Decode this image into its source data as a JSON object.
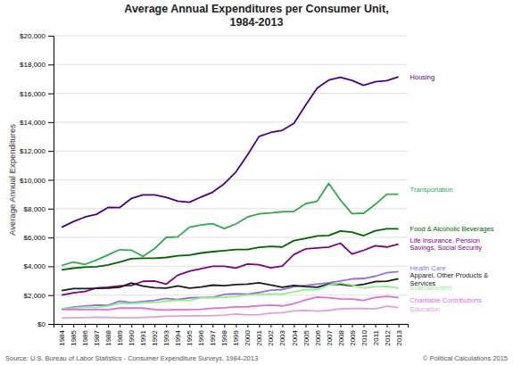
{
  "chart_data": {
    "type": "line",
    "title": "Average Annual Expenditures per Consumer Unit,\n1984-2013",
    "y_label": "Average Annual Expenditures",
    "notes": [
      "Source: U.S. Bureau of Labor Statistics - Consumer Expenditure Surveys, 1984-2013",
      "© Political Calculations 2015"
    ],
    "x": [
      1984,
      1985,
      1986,
      1987,
      1988,
      1989,
      1990,
      1991,
      1992,
      1993,
      1994,
      1995,
      1996,
      1997,
      1998,
      1999,
      2000,
      2001,
      2002,
      2003,
      2004,
      2005,
      2006,
      2007,
      2008,
      2009,
      2010,
      2011,
      2012,
      2013
    ],
    "xlim": [
      1983.3,
      2013.8
    ],
    "xticks": [
      1984,
      1985,
      1986,
      1987,
      1988,
      1989,
      1990,
      1991,
      1992,
      1993,
      1994,
      1995,
      1996,
      1997,
      1998,
      1999,
      2000,
      2001,
      2002,
      2003,
      2004,
      2005,
      2006,
      2007,
      2008,
      2009,
      2010,
      2011,
      2012,
      2013
    ],
    "ylim": [
      0,
      20000
    ],
    "yticks": [
      {
        "value": 0,
        "label": "$0"
      },
      {
        "value": 2000,
        "label": "$2,000"
      },
      {
        "value": 4000,
        "label": "$4,000"
      },
      {
        "value": 6000,
        "label": "$6,000"
      },
      {
        "value": 8000,
        "label": "$8,000"
      },
      {
        "value": 10000,
        "label": "$10,000"
      },
      {
        "value": 12000,
        "label": "$12,000"
      },
      {
        "value": 14000,
        "label": "$14,000"
      },
      {
        "value": 16000,
        "label": "$16,000"
      },
      {
        "value": 18000,
        "label": "$18,000"
      },
      {
        "value": 20000,
        "label": "$20,000"
      }
    ],
    "grid": "y",
    "series": [
      {
        "color": "#4b0082",
        "values": [
          6713,
          7101,
          7415,
          7609,
          8079,
          8078,
          8703,
          8961,
          8958,
          8781,
          8516,
          8440,
          8805,
          9145,
          9725,
          10535,
          11713,
          13011,
          13283,
          13432,
          13918,
          15167,
          16366,
          16920,
          17109,
          16895,
          16557,
          16803,
          16887,
          17148
        ]
      },
      {
        "color": "#32a852",
        "values": [
          4056,
          4291,
          4132,
          4437,
          4792,
          5152,
          5120,
          4691,
          5227,
          6005,
          6044,
          6714,
          6865,
          6958,
          6616,
          6937,
          7417,
          7633,
          7702,
          7787,
          7801,
          8344,
          8508,
          9753,
          8604,
          7658,
          7677,
          8293,
          8998,
          9004
        ]
      },
      {
        "color": "#006400",
        "values": [
          3750,
          3870,
          3943,
          3967,
          4095,
          4296,
          4527,
          4560,
          4555,
          4614,
          4726,
          4780,
          4922,
          5016,
          5087,
          5165,
          5158,
          5321,
          5375,
          5340,
          5781,
          5931,
          6111,
          6133,
          6443,
          6372,
          6129,
          6458,
          6599,
          6602
        ]
      },
      {
        "color": "#800080",
        "values": [
          2004,
          2162,
          2246,
          2493,
          2549,
          2636,
          2673,
          2956,
          2981,
          2760,
          3381,
          3663,
          3830,
          3997,
          4005,
          3877,
          4154,
          4109,
          3899,
          4019,
          4823,
          5204,
          5270,
          5336,
          5605,
          4849,
          5109,
          5424,
          5340,
          5528
        ]
      },
      {
        "color": "#9370DB",
        "values": [
          1049,
          1167,
          1241,
          1301,
          1298,
          1585,
          1480,
          1554,
          1634,
          1776,
          1701,
          1811,
          1831,
          1841,
          2047,
          2097,
          2066,
          2182,
          2350,
          2384,
          2574,
          2664,
          2766,
          2853,
          2976,
          3126,
          3157,
          3313,
          3556,
          3631
        ]
      },
      {
        "color": "#1a1a1a",
        "values": [
          2310,
          2450,
          2450,
          2474,
          2479,
          2541,
          2835,
          2620,
          2511,
          2487,
          2640,
          2490,
          2567,
          2693,
          2655,
          2727,
          2760,
          2850,
          2700,
          2550,
          2670,
          2594,
          2541,
          2764,
          2754,
          2635,
          2747,
          2941,
          2960,
          3137
        ]
      },
      {
        "color": "#90EE90",
        "values": [
          1060,
          1104,
          1167,
          1142,
          1250,
          1424,
          1422,
          1472,
          1492,
          1579,
          1651,
          1612,
          1813,
          1813,
          1853,
          1891,
          2020,
          2034,
          2079,
          2060,
          2218,
          2388,
          2376,
          2698,
          2835,
          2693,
          2504,
          2572,
          2605,
          2482
        ]
      },
      {
        "color": "#DA70D6",
        "values": [
          1000,
          1020,
          1000,
          1000,
          1000,
          1100,
          1100,
          1100,
          1000,
          970,
          1000,
          1000,
          1017,
          1097,
          1124,
          1190,
          1192,
          1263,
          1303,
          1253,
          1408,
          1663,
          1869,
          1821,
          1737,
          1723,
          1633,
          1834,
          1913,
          1834
        ]
      },
      {
        "color": "#DDA0DD",
        "values": [
          408,
          430,
          446,
          471,
          459,
          431,
          430,
          457,
          480,
          530,
          546,
          571,
          571,
          580,
          614,
          691,
          632,
          648,
          752,
          783,
          905,
          940,
          888,
          945,
          1046,
          1068,
          1074,
          1051,
          1238,
          1138
        ]
      }
    ],
    "annotations": [
      {
        "text": "Housing",
        "x": 2014.0,
        "y": 17148,
        "color": "#4b0082"
      },
      {
        "text": "Transportation",
        "x": 2014.0,
        "y": 9300,
        "color": "#32a852"
      },
      {
        "text": "Food & Alcoholic Beverages",
        "x": 2014.0,
        "y": 6602,
        "color": "#006400"
      },
      {
        "text": "Life Insurance, Pension\nSavings, Social Security",
        "x": 2014.0,
        "y": 5528,
        "color": "#800080"
      },
      {
        "text": "Health Care",
        "x": 2014.0,
        "y": 3900,
        "color": "#9370DB"
      },
      {
        "text": "Apparel, Other Products &\nServices",
        "x": 2014.0,
        "y": 3100,
        "color": "#1a1a1a"
      },
      {
        "text": "Entertainment",
        "x": 2014.0,
        "y": 2482,
        "color": "#90EE90"
      },
      {
        "text": "Charitable Contributions",
        "x": 2014.0,
        "y": 1650,
        "color": "#DA70D6"
      },
      {
        "text": "Education",
        "x": 2014.0,
        "y": 1000,
        "color": "#DDA0DD"
      }
    ]
  }
}
